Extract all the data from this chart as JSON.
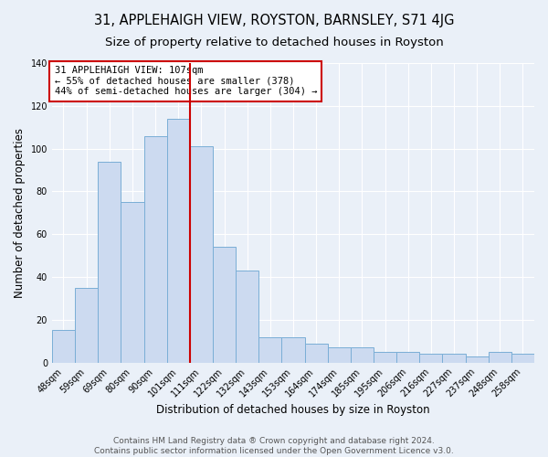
{
  "title": "31, APPLEHAIGH VIEW, ROYSTON, BARNSLEY, S71 4JG",
  "subtitle": "Size of property relative to detached houses in Royston",
  "xlabel": "Distribution of detached houses by size in Royston",
  "ylabel": "Number of detached properties",
  "categories": [
    "48sqm",
    "59sqm",
    "69sqm",
    "80sqm",
    "90sqm",
    "101sqm",
    "111sqm",
    "122sqm",
    "132sqm",
    "143sqm",
    "153sqm",
    "164sqm",
    "174sqm",
    "185sqm",
    "195sqm",
    "206sqm",
    "216sqm",
    "227sqm",
    "237sqm",
    "248sqm",
    "258sqm"
  ],
  "values": [
    15,
    35,
    94,
    75,
    106,
    114,
    101,
    54,
    43,
    12,
    12,
    9,
    7,
    7,
    5,
    5,
    4,
    4,
    3,
    5,
    4
  ],
  "bar_color": "#ccdaf0",
  "bar_edge_color": "#7aaed6",
  "vline_x": 5.5,
  "vline_color": "#cc0000",
  "annotation_text": "31 APPLEHAIGH VIEW: 107sqm\n← 55% of detached houses are smaller (378)\n44% of semi-detached houses are larger (304) →",
  "annotation_box_color": "white",
  "annotation_box_edge_color": "#cc0000",
  "ylim": [
    0,
    140
  ],
  "yticks": [
    0,
    20,
    40,
    60,
    80,
    100,
    120,
    140
  ],
  "footer_line1": "Contains HM Land Registry data ® Crown copyright and database right 2024.",
  "footer_line2": "Contains public sector information licensed under the Open Government Licence v3.0.",
  "background_color": "#eaf0f8",
  "plot_background_color": "#eaf0f8",
  "title_fontsize": 10.5,
  "subtitle_fontsize": 9.5,
  "tick_fontsize": 7,
  "label_fontsize": 8.5,
  "footer_fontsize": 6.5,
  "annotation_fontsize": 7.5
}
